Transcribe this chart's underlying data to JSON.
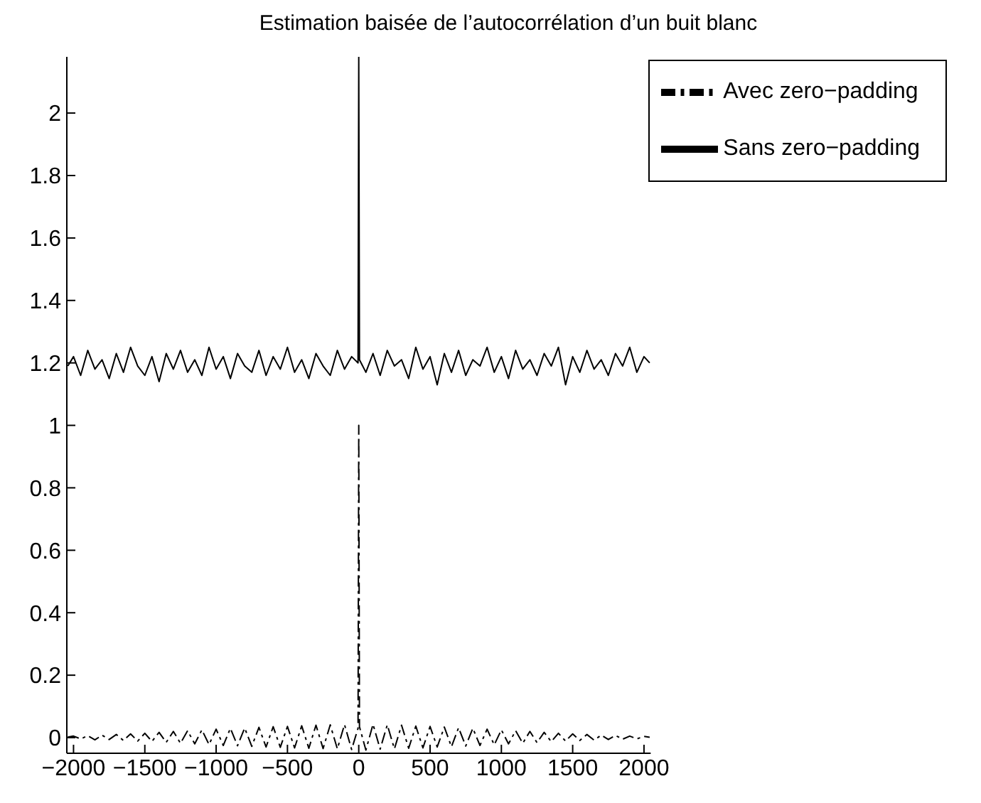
{
  "chart_data": {
    "type": "line",
    "title": "Estimation baisée de l’autocorrélation d’un buit blanc",
    "x": [
      -2040,
      -2000,
      -1950,
      -1900,
      -1850,
      -1800,
      -1750,
      -1700,
      -1650,
      -1600,
      -1550,
      -1500,
      -1450,
      -1400,
      -1350,
      -1300,
      -1250,
      -1200,
      -1150,
      -1100,
      -1050,
      -1000,
      -950,
      -900,
      -850,
      -800,
      -750,
      -700,
      -650,
      -600,
      -550,
      -500,
      -450,
      -400,
      -350,
      -300,
      -250,
      -200,
      -150,
      -100,
      -50,
      -5,
      0,
      5,
      50,
      100,
      150,
      200,
      250,
      300,
      350,
      400,
      450,
      500,
      550,
      600,
      650,
      700,
      750,
      800,
      850,
      900,
      950,
      1000,
      1050,
      1100,
      1150,
      1200,
      1250,
      1300,
      1350,
      1400,
      1450,
      1500,
      1550,
      1600,
      1650,
      1700,
      1750,
      1800,
      1850,
      1900,
      1950,
      2000,
      2040
    ],
    "series": [
      {
        "name": "Avec zero−padding",
        "color": "#000000",
        "line_style": "dashed",
        "values": [
          0.002,
          0.005,
          -0.004,
          0.006,
          -0.007,
          0.008,
          -0.006,
          0.01,
          -0.009,
          0.012,
          -0.011,
          0.014,
          -0.012,
          0.017,
          -0.015,
          0.02,
          -0.018,
          0.022,
          -0.02,
          0.025,
          -0.022,
          0.027,
          -0.025,
          0.03,
          -0.026,
          0.031,
          -0.028,
          0.033,
          -0.03,
          0.035,
          -0.031,
          0.036,
          -0.033,
          0.038,
          -0.034,
          0.04,
          -0.035,
          0.041,
          -0.036,
          0.042,
          -0.038,
          0.03,
          1,
          0.035,
          -0.04,
          0.043,
          -0.037,
          0.041,
          -0.036,
          0.04,
          -0.034,
          0.037,
          -0.033,
          0.036,
          -0.03,
          0.034,
          -0.029,
          0.032,
          -0.027,
          0.03,
          -0.025,
          0.027,
          -0.023,
          0.025,
          -0.02,
          0.022,
          -0.018,
          0.02,
          -0.016,
          0.017,
          -0.013,
          0.014,
          -0.011,
          0.012,
          -0.009,
          0.01,
          -0.008,
          0.008,
          -0.006,
          0.007,
          -0.005,
          0.005,
          -0.004,
          0.004,
          0.001
        ]
      },
      {
        "name": "Sans zero−padding",
        "color": "#000000",
        "line_style": "solid",
        "values": [
          1.19,
          1.22,
          1.16,
          1.24,
          1.18,
          1.21,
          1.15,
          1.23,
          1.17,
          1.25,
          1.19,
          1.16,
          1.22,
          1.14,
          1.23,
          1.18,
          1.24,
          1.17,
          1.21,
          1.16,
          1.25,
          1.18,
          1.22,
          1.15,
          1.23,
          1.19,
          1.17,
          1.24,
          1.16,
          1.22,
          1.18,
          1.25,
          1.17,
          1.21,
          1.15,
          1.23,
          1.19,
          1.16,
          1.24,
          1.18,
          1.22,
          1.2,
          2.18,
          1.21,
          1.17,
          1.23,
          1.16,
          1.24,
          1.19,
          1.21,
          1.15,
          1.25,
          1.18,
          1.22,
          1.13,
          1.23,
          1.17,
          1.24,
          1.16,
          1.21,
          1.19,
          1.25,
          1.17,
          1.22,
          1.15,
          1.24,
          1.18,
          1.21,
          1.16,
          1.23,
          1.19,
          1.25,
          1.13,
          1.22,
          1.17,
          1.24,
          1.18,
          1.21,
          1.16,
          1.23,
          1.19,
          1.25,
          1.17,
          1.22,
          1.2
        ]
      }
    ],
    "xlim": [
      -2047,
      2047
    ],
    "xticks": [
      -2000,
      -1500,
      -1000,
      -500,
      0,
      500,
      1000,
      1500,
      2000
    ],
    "ylim": [
      -0.05,
      2.18
    ],
    "yticks": [
      0,
      0.2,
      0.4,
      0.6,
      0.8,
      1,
      1.2,
      1.4,
      1.6,
      1.8,
      2
    ],
    "legend": "top right",
    "grid": false,
    "marker": "none"
  }
}
